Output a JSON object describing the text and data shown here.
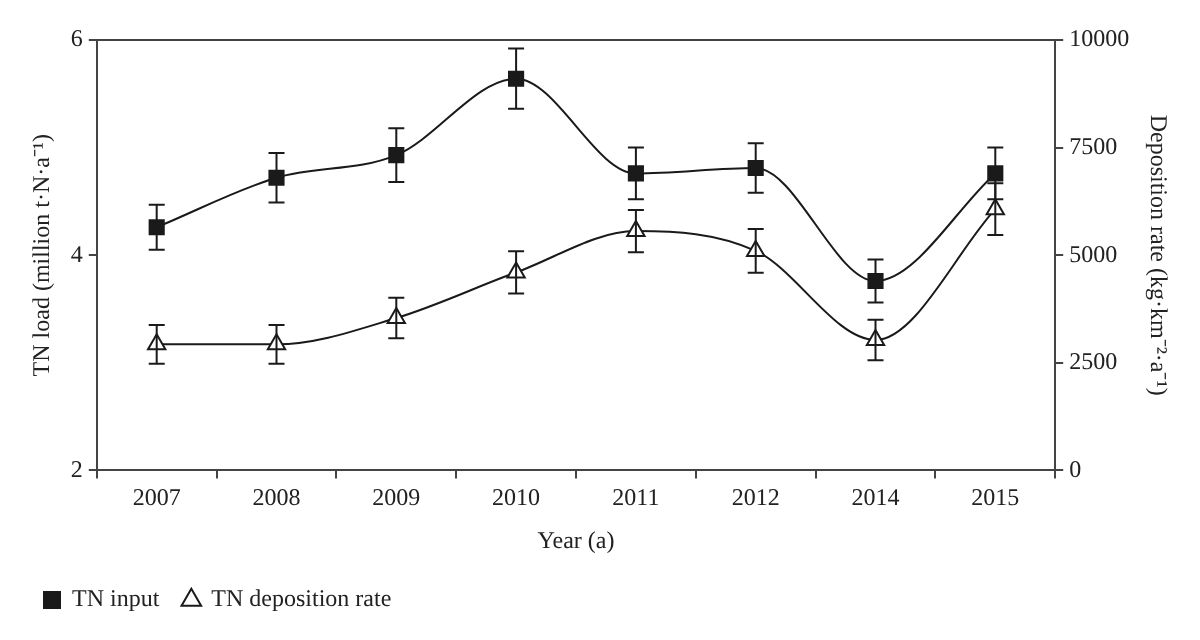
{
  "chart_data": {
    "type": "line",
    "xlabel": "Year (a)",
    "ylabel": "TN load (million t·N·a⁻¹)",
    "y2label": "Deposition rate (kg·km⁻²·a⁻¹)",
    "categories": [
      "2007",
      "2008",
      "2009",
      "2010",
      "2011",
      "2012",
      "2014",
      "2015"
    ],
    "series": [
      {
        "name": "TN input",
        "color": "#1a1a1a",
        "marker": "square",
        "values": [
          4.26,
          4.72,
          4.93,
          5.64,
          4.76,
          4.81,
          3.76,
          4.76
        ],
        "errors": [
          0.21,
          0.23,
          0.25,
          0.28,
          0.24,
          0.23,
          0.2,
          0.24
        ]
      },
      {
        "name": "TN deposition rate",
        "color": "#1a1a1a",
        "marker": "triangle",
        "axis": "y2",
        "values": [
          2930,
          2930,
          3540,
          4600,
          5560,
          5100,
          3030,
          6070
        ],
        "errors": [
          450,
          450,
          470,
          490,
          490,
          510,
          470,
          600
        ]
      }
    ],
    "ylim": [
      2,
      6
    ],
    "yticks": [
      2,
      4,
      6
    ],
    "y2lim": [
      0,
      10000
    ],
    "y2ticks": [
      0,
      2500,
      5000,
      7500,
      10000
    ],
    "grid": false,
    "legend": "bottom left"
  }
}
